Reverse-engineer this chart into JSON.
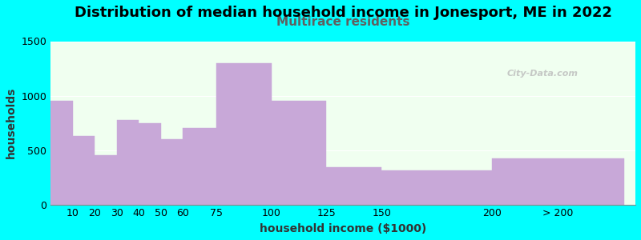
{
  "title": "Distribution of median household income in Jonesport, ME in 2022",
  "subtitle": "Multirace residents",
  "xlabel": "household income ($1000)",
  "ylabel": "households",
  "bg_color": "#00FFFF",
  "bar_color": "#C8A8D8",
  "bar_edgecolor": "#C8A8D8",
  "left_edges": [
    0,
    10,
    20,
    30,
    40,
    50,
    60,
    75,
    100,
    125,
    150,
    200
  ],
  "right_edges": [
    10,
    20,
    30,
    40,
    50,
    60,
    75,
    100,
    125,
    150,
    200,
    260
  ],
  "tick_positions": [
    10,
    20,
    30,
    40,
    50,
    60,
    75,
    100,
    125,
    150,
    200,
    230
  ],
  "tick_labels": [
    "10",
    "20",
    "30",
    "40",
    "50",
    "60",
    "75",
    "100",
    "125",
    "150",
    "200",
    "> 200"
  ],
  "values": [
    950,
    630,
    450,
    775,
    750,
    600,
    700,
    1300,
    950,
    340,
    315,
    425
  ],
  "ylim": [
    0,
    1500
  ],
  "yticks": [
    0,
    500,
    1000,
    1500
  ],
  "title_fontsize": 13,
  "subtitle_fontsize": 11,
  "subtitle_color": "#606060",
  "axis_label_fontsize": 10,
  "tick_fontsize": 9,
  "watermark": "City-Data.com"
}
